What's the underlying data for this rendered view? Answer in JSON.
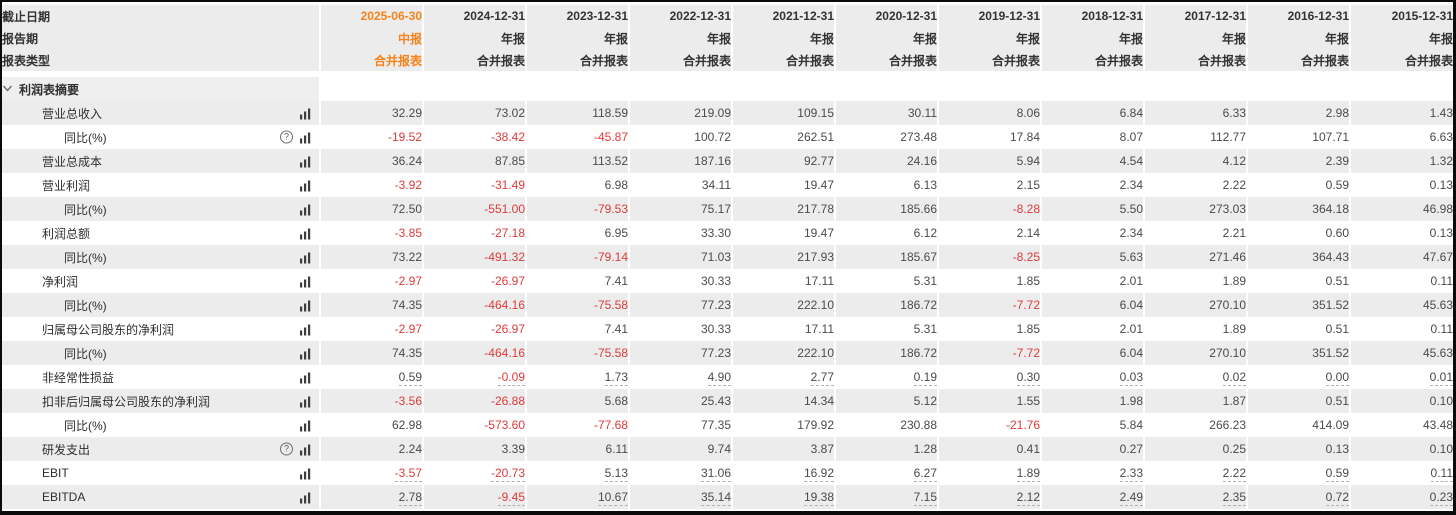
{
  "colors": {
    "accent_orange": "#f7821b",
    "negative_red": "#e03a3a",
    "stripe_gray": "#ececec",
    "header_text": "#333333",
    "value_text": "#4b4b4b"
  },
  "table": {
    "header_rows": [
      {
        "label": "截止日期",
        "values": [
          "2025-06-30",
          "2024-12-31",
          "2023-12-31",
          "2022-12-31",
          "2021-12-31",
          "2020-12-31",
          "2019-12-31",
          "2018-12-31",
          "2017-12-31",
          "2016-12-31",
          "2015-12-31"
        ]
      },
      {
        "label": "报告期",
        "values": [
          "中报",
          "年报",
          "年报",
          "年报",
          "年报",
          "年报",
          "年报",
          "年报",
          "年报",
          "年报",
          "年报"
        ]
      },
      {
        "label": "报表类型",
        "values": [
          "合并报表",
          "合并报表",
          "合并报表",
          "合并报表",
          "合并报表",
          "合并报表",
          "合并报表",
          "合并报表",
          "合并报表",
          "合并报表",
          "合并报表"
        ]
      }
    ],
    "section": {
      "title": "利润表摘要"
    },
    "rows": [
      {
        "label": "营业总收入",
        "indent": 1,
        "help": false,
        "chart": true,
        "underline": false,
        "values": [
          "32.29",
          "73.02",
          "118.59",
          "219.09",
          "109.15",
          "30.11",
          "8.06",
          "6.84",
          "6.33",
          "2.98",
          "1.43"
        ]
      },
      {
        "label": "同比(%)",
        "indent": 2,
        "help": true,
        "chart": true,
        "underline": false,
        "values": [
          "-19.52",
          "-38.42",
          "-45.87",
          "100.72",
          "262.51",
          "273.48",
          "17.84",
          "8.07",
          "112.77",
          "107.71",
          "6.63"
        ]
      },
      {
        "label": "营业总成本",
        "indent": 1,
        "help": false,
        "chart": true,
        "underline": false,
        "values": [
          "36.24",
          "87.85",
          "113.52",
          "187.16",
          "92.77",
          "24.16",
          "5.94",
          "4.54",
          "4.12",
          "2.39",
          "1.32"
        ]
      },
      {
        "label": "营业利润",
        "indent": 1,
        "help": false,
        "chart": true,
        "underline": false,
        "values": [
          "-3.92",
          "-31.49",
          "6.98",
          "34.11",
          "19.47",
          "6.13",
          "2.15",
          "2.34",
          "2.22",
          "0.59",
          "0.13"
        ]
      },
      {
        "label": "同比(%)",
        "indent": 2,
        "help": false,
        "chart": true,
        "underline": false,
        "values": [
          "72.50",
          "-551.00",
          "-79.53",
          "75.17",
          "217.78",
          "185.66",
          "-8.28",
          "5.50",
          "273.03",
          "364.18",
          "46.98"
        ]
      },
      {
        "label": "利润总额",
        "indent": 1,
        "help": false,
        "chart": true,
        "underline": false,
        "values": [
          "-3.85",
          "-27.18",
          "6.95",
          "33.30",
          "19.47",
          "6.12",
          "2.14",
          "2.34",
          "2.21",
          "0.60",
          "0.13"
        ]
      },
      {
        "label": "同比(%)",
        "indent": 2,
        "help": false,
        "chart": true,
        "underline": false,
        "values": [
          "73.22",
          "-491.32",
          "-79.14",
          "71.03",
          "217.93",
          "185.67",
          "-8.25",
          "5.63",
          "271.46",
          "364.43",
          "47.67"
        ]
      },
      {
        "label": "净利润",
        "indent": 1,
        "help": false,
        "chart": true,
        "underline": false,
        "values": [
          "-2.97",
          "-26.97",
          "7.41",
          "30.33",
          "17.11",
          "5.31",
          "1.85",
          "2.01",
          "1.89",
          "0.51",
          "0.11"
        ]
      },
      {
        "label": "同比(%)",
        "indent": 2,
        "help": false,
        "chart": true,
        "underline": false,
        "values": [
          "74.35",
          "-464.16",
          "-75.58",
          "77.23",
          "222.10",
          "186.72",
          "-7.72",
          "6.04",
          "270.10",
          "351.52",
          "45.63"
        ]
      },
      {
        "label": "归属母公司股东的净利润",
        "indent": 1,
        "help": false,
        "chart": true,
        "underline": false,
        "values": [
          "-2.97",
          "-26.97",
          "7.41",
          "30.33",
          "17.11",
          "5.31",
          "1.85",
          "2.01",
          "1.89",
          "0.51",
          "0.11"
        ]
      },
      {
        "label": "同比(%)",
        "indent": 2,
        "help": false,
        "chart": true,
        "underline": false,
        "values": [
          "74.35",
          "-464.16",
          "-75.58",
          "77.23",
          "222.10",
          "186.72",
          "-7.72",
          "6.04",
          "270.10",
          "351.52",
          "45.63"
        ]
      },
      {
        "label": "非经常性损益",
        "indent": 1,
        "help": false,
        "chart": true,
        "underline": true,
        "values": [
          "0.59",
          "-0.09",
          "1.73",
          "4.90",
          "2.77",
          "0.19",
          "0.30",
          "0.03",
          "0.02",
          "0.00",
          "0.01"
        ]
      },
      {
        "label": "扣非后归属母公司股东的净利润",
        "indent": 1,
        "help": false,
        "chart": true,
        "underline": false,
        "values": [
          "-3.56",
          "-26.88",
          "5.68",
          "25.43",
          "14.34",
          "5.12",
          "1.55",
          "1.98",
          "1.87",
          "0.51",
          "0.10"
        ]
      },
      {
        "label": "同比(%)",
        "indent": 2,
        "help": false,
        "chart": true,
        "underline": false,
        "values": [
          "62.98",
          "-573.60",
          "-77.68",
          "77.35",
          "179.92",
          "230.88",
          "-21.76",
          "5.84",
          "266.23",
          "414.09",
          "43.48"
        ]
      },
      {
        "label": "研发支出",
        "indent": 1,
        "help": true,
        "chart": true,
        "underline": false,
        "values": [
          "2.24",
          "3.39",
          "6.11",
          "9.74",
          "3.87",
          "1.28",
          "0.41",
          "0.27",
          "0.25",
          "0.13",
          "0.10"
        ]
      },
      {
        "label": "EBIT",
        "indent": 1,
        "help": false,
        "chart": true,
        "underline": true,
        "values": [
          "-3.57",
          "-20.73",
          "5.13",
          "31.06",
          "16.92",
          "6.27",
          "1.89",
          "2.33",
          "2.22",
          "0.59",
          "0.11"
        ]
      },
      {
        "label": "EBITDA",
        "indent": 1,
        "help": false,
        "chart": true,
        "underline": true,
        "values": [
          "2.78",
          "-9.45",
          "10.67",
          "35.14",
          "19.38",
          "7.15",
          "2.12",
          "2.49",
          "2.35",
          "0.72",
          "0.23"
        ]
      }
    ]
  }
}
